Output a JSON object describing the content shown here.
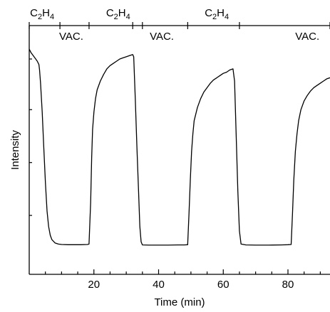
{
  "chart_data": {
    "type": "line",
    "title": "",
    "xlabel": "Time (min)",
    "ylabel": "Intensity",
    "xlim": [
      0,
      93
    ],
    "ylim": [
      0,
      1
    ],
    "x_ticks": [
      20,
      40,
      60,
      80
    ],
    "x_minor_step": 5,
    "y_minor_ticks": [
      0.19,
      0.43,
      0.67,
      0.9
    ],
    "y_tick_labels_shown": false,
    "grid": false,
    "legend": "none",
    "line_color": "#000000",
    "top_markers": [
      0,
      9.5,
      18.5,
      32,
      35,
      49,
      65,
      93
    ],
    "phase_labels": [
      {
        "text": "C2H4",
        "base": "C",
        "sub1": "2",
        "mid": "H",
        "sub2": "4",
        "x": 4
      },
      {
        "text": "VAC.",
        "x": 13
      },
      {
        "text": "C2H4",
        "base": "C",
        "sub1": "2",
        "mid": "H",
        "sub2": "4",
        "x": 27.5
      },
      {
        "text": "VAC.",
        "x": 41
      },
      {
        "text": "C2H4",
        "base": "C",
        "sub1": "2",
        "mid": "H",
        "sub2": "4",
        "x": 58
      },
      {
        "text": "VAC.",
        "x": 86
      }
    ],
    "series": [
      {
        "x": [
          0,
          0.5,
          1,
          1.5,
          2,
          2.5,
          3,
          3.2,
          3.5,
          4,
          4.5,
          5,
          5.5,
          6,
          6.5,
          7,
          8,
          9,
          10,
          12,
          14,
          16,
          18,
          18.5,
          19,
          19.3,
          19.6,
          20,
          20.5,
          21,
          22,
          23,
          24,
          25,
          26,
          27,
          28,
          29,
          30,
          31,
          32,
          32.3,
          32.8,
          33.3,
          33.8,
          34.2,
          34.6,
          35,
          37,
          40,
          43,
          46,
          48,
          49,
          49.4,
          49.8,
          50.2,
          50.6,
          51,
          52,
          53,
          54,
          55,
          56,
          57,
          58,
          59,
          60,
          61,
          62,
          63,
          63.5,
          64,
          64.5,
          65,
          65.5,
          67,
          70,
          74,
          78,
          80,
          81,
          81.4,
          81.8,
          82.3,
          82.8,
          83.3,
          84,
          85,
          86,
          87,
          88,
          89,
          90,
          91,
          92,
          93
        ],
        "y": [
          0.945,
          0.93,
          0.92,
          0.91,
          0.9,
          0.89,
          0.875,
          0.85,
          0.79,
          0.66,
          0.5,
          0.34,
          0.21,
          0.14,
          0.1,
          0.08,
          0.065,
          0.06,
          0.058,
          0.057,
          0.057,
          0.057,
          0.058,
          0.06,
          0.25,
          0.45,
          0.58,
          0.66,
          0.72,
          0.76,
          0.8,
          0.83,
          0.855,
          0.87,
          0.88,
          0.89,
          0.9,
          0.905,
          0.91,
          0.915,
          0.92,
          0.91,
          0.72,
          0.5,
          0.3,
          0.14,
          0.07,
          0.056,
          0.055,
          0.055,
          0.055,
          0.056,
          0.056,
          0.057,
          0.2,
          0.35,
          0.48,
          0.56,
          0.62,
          0.68,
          0.72,
          0.75,
          0.77,
          0.79,
          0.805,
          0.815,
          0.825,
          0.835,
          0.84,
          0.85,
          0.855,
          0.8,
          0.55,
          0.3,
          0.12,
          0.06,
          0.056,
          0.055,
          0.055,
          0.056,
          0.057,
          0.058,
          0.2,
          0.35,
          0.48,
          0.56,
          0.62,
          0.67,
          0.71,
          0.735,
          0.755,
          0.77,
          0.78,
          0.79,
          0.8,
          0.81,
          0.815
        ]
      }
    ]
  }
}
